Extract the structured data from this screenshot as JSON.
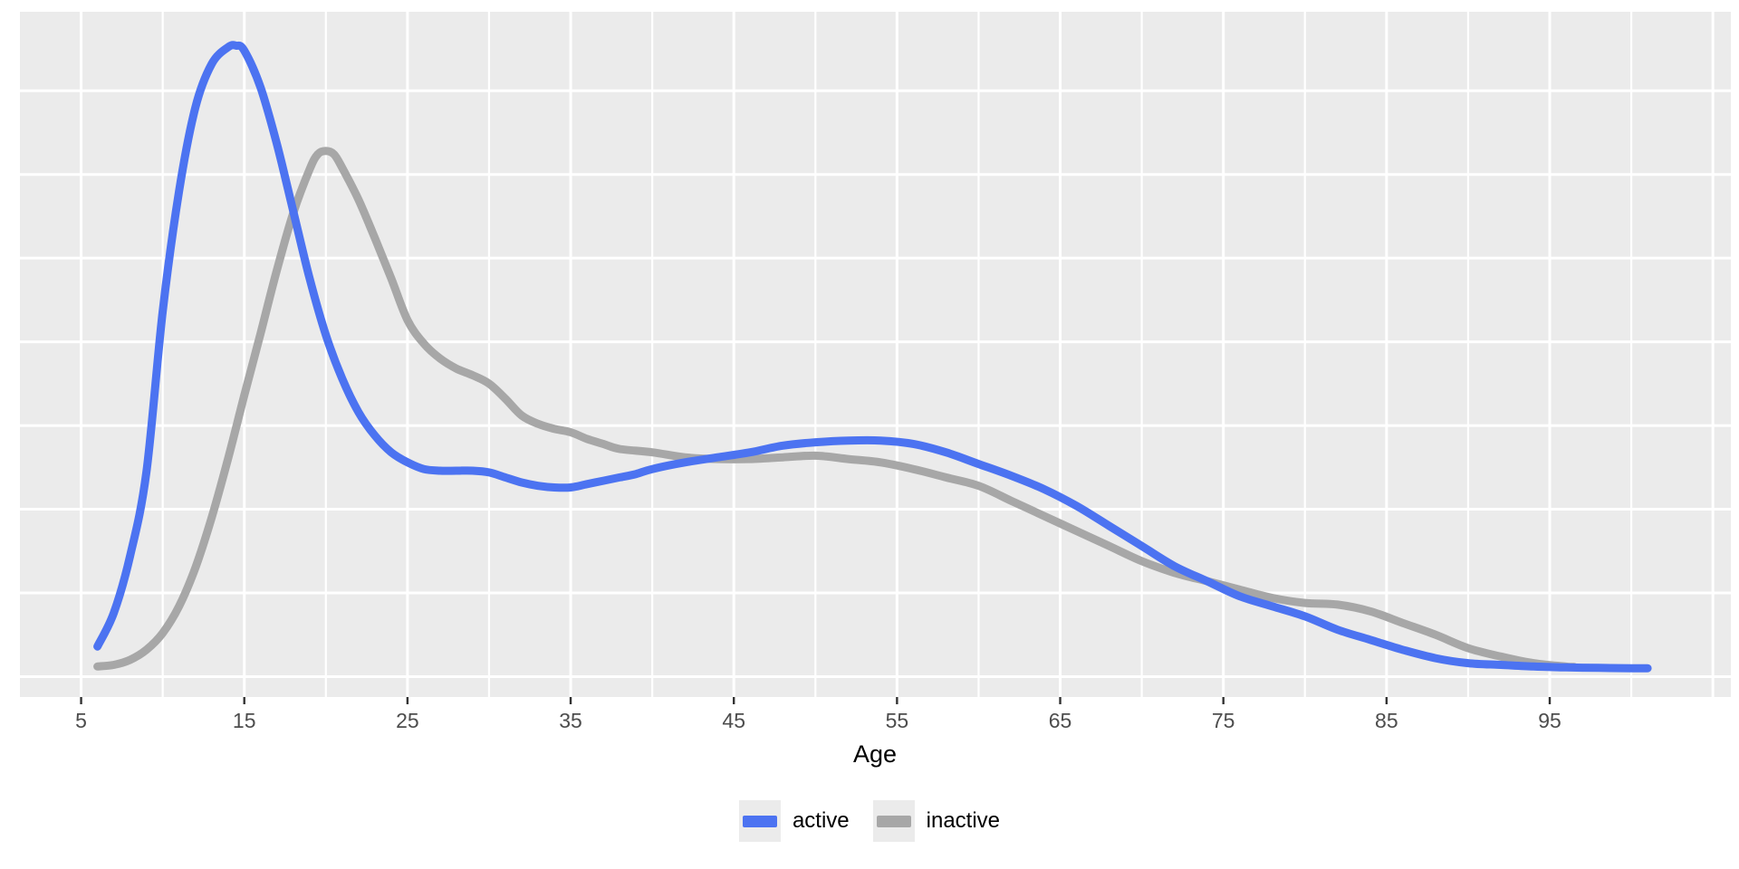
{
  "figure": {
    "background": "#FFFFFF",
    "panel_background": "#EBEBEB",
    "grid_color": "#FFFFFF",
    "tick_mark_color": "#333333",
    "tick_label_color": "#4D4D4D",
    "axis_title_color": "#000000"
  },
  "legend": {
    "position": "bottom",
    "key_background": "#EBEBEB",
    "entries": [
      {
        "label": "active",
        "color": "#4C73F1"
      },
      {
        "label": "inactive",
        "color": "#A7A7A7"
      }
    ]
  },
  "chart_data": {
    "type": "line",
    "subtype": "density",
    "title": "",
    "xlabel": "Age",
    "ylabel": "",
    "xlim": [
      1.25,
      106.1
    ],
    "ylim": [
      -0.00122,
      0.03972
    ],
    "x_ticks": [
      5,
      15,
      25,
      35,
      45,
      55,
      65,
      75,
      85,
      95
    ],
    "x_tick_labels": [
      "5",
      "15",
      "25",
      "35",
      "45",
      "55",
      "65",
      "75",
      "85",
      "95"
    ],
    "x_grid_major": [
      5,
      15,
      25,
      35,
      45,
      55,
      65,
      75,
      85,
      95,
      105
    ],
    "x_grid_minor": [
      10,
      20,
      30,
      40,
      50,
      60,
      70,
      80,
      90,
      100
    ],
    "y_gridlines": [
      0,
      0.005,
      0.01,
      0.015,
      0.02,
      0.025,
      0.03,
      0.035
    ],
    "y_tick_labels": [],
    "grid": true,
    "legend_position": "bottom",
    "series": [
      {
        "name": "inactive",
        "color": "#A7A7A7",
        "linewidth": 9,
        "points": [
          [
            6,
            0.0006
          ],
          [
            7,
            0.0007
          ],
          [
            8,
            0.001
          ],
          [
            9,
            0.0016
          ],
          [
            10,
            0.0026
          ],
          [
            11,
            0.0042
          ],
          [
            12,
            0.0065
          ],
          [
            13,
            0.0095
          ],
          [
            14,
            0.013
          ],
          [
            15,
            0.0168
          ],
          [
            16,
            0.0205
          ],
          [
            17,
            0.0243
          ],
          [
            18,
            0.0277
          ],
          [
            19,
            0.0303
          ],
          [
            19.5,
            0.0312
          ],
          [
            20,
            0.0314
          ],
          [
            20.5,
            0.0312
          ],
          [
            21,
            0.0304
          ],
          [
            22,
            0.0285
          ],
          [
            23,
            0.0262
          ],
          [
            24,
            0.0238
          ],
          [
            25,
            0.0213
          ],
          [
            26,
            0.0199
          ],
          [
            27,
            0.019
          ],
          [
            28,
            0.0184
          ],
          [
            29,
            0.018
          ],
          [
            30,
            0.0175
          ],
          [
            31,
            0.0166
          ],
          [
            32,
            0.0156
          ],
          [
            33,
            0.0151
          ],
          [
            34,
            0.0148
          ],
          [
            35,
            0.0146
          ],
          [
            36,
            0.0142
          ],
          [
            37,
            0.0139
          ],
          [
            38,
            0.0136
          ],
          [
            40,
            0.0134
          ],
          [
            42,
            0.0131
          ],
          [
            44,
            0.013
          ],
          [
            46,
            0.013
          ],
          [
            48,
            0.0131
          ],
          [
            50,
            0.0132
          ],
          [
            52,
            0.013
          ],
          [
            54,
            0.0128
          ],
          [
            56,
            0.0124
          ],
          [
            58,
            0.0119
          ],
          [
            60,
            0.0114
          ],
          [
            62,
            0.0105
          ],
          [
            64,
            0.0096
          ],
          [
            66,
            0.0087
          ],
          [
            68,
            0.0078
          ],
          [
            70,
            0.0069
          ],
          [
            72,
            0.0062
          ],
          [
            74,
            0.0057
          ],
          [
            76,
            0.0052
          ],
          [
            78,
            0.0047
          ],
          [
            80,
            0.0044
          ],
          [
            82,
            0.0043
          ],
          [
            84,
            0.0039
          ],
          [
            86,
            0.0032
          ],
          [
            88,
            0.0025
          ],
          [
            90,
            0.0017
          ],
          [
            92,
            0.0012
          ],
          [
            94,
            0.0008
          ],
          [
            96,
            0.0006
          ],
          [
            96.5,
            0.00058
          ]
        ]
      },
      {
        "name": "active",
        "color": "#4C73F1",
        "linewidth": 9,
        "points": [
          [
            6,
            0.0018
          ],
          [
            7,
            0.0038
          ],
          [
            8,
            0.0072
          ],
          [
            9,
            0.0122
          ],
          [
            10,
            0.0218
          ],
          [
            11,
            0.029
          ],
          [
            12,
            0.034
          ],
          [
            13,
            0.0366
          ],
          [
            14,
            0.0376
          ],
          [
            14.5,
            0.0377
          ],
          [
            15,
            0.0374
          ],
          [
            16,
            0.0352
          ],
          [
            17,
            0.0318
          ],
          [
            18,
            0.0278
          ],
          [
            19,
            0.0238
          ],
          [
            20,
            0.0204
          ],
          [
            21,
            0.0178
          ],
          [
            22,
            0.0158
          ],
          [
            23,
            0.0144
          ],
          [
            24,
            0.0134
          ],
          [
            25,
            0.0128
          ],
          [
            26,
            0.0124
          ],
          [
            27,
            0.0123
          ],
          [
            28,
            0.0123
          ],
          [
            29,
            0.0123
          ],
          [
            30,
            0.0122
          ],
          [
            31,
            0.0119
          ],
          [
            32,
            0.0116
          ],
          [
            33,
            0.0114
          ],
          [
            34,
            0.0113
          ],
          [
            35,
            0.0113
          ],
          [
            36,
            0.0115
          ],
          [
            37,
            0.0117
          ],
          [
            38,
            0.0119
          ],
          [
            39,
            0.0121
          ],
          [
            40,
            0.0124
          ],
          [
            42,
            0.0128
          ],
          [
            44,
            0.0131
          ],
          [
            46,
            0.0134
          ],
          [
            48,
            0.0138
          ],
          [
            50,
            0.014
          ],
          [
            52,
            0.0141
          ],
          [
            54,
            0.0141
          ],
          [
            56,
            0.0139
          ],
          [
            58,
            0.0134
          ],
          [
            60,
            0.0127
          ],
          [
            62,
            0.012
          ],
          [
            64,
            0.0112
          ],
          [
            66,
            0.0102
          ],
          [
            68,
            0.009
          ],
          [
            70,
            0.0078
          ],
          [
            72,
            0.0066
          ],
          [
            74,
            0.0057
          ],
          [
            76,
            0.0048
          ],
          [
            78,
            0.0042
          ],
          [
            80,
            0.0036
          ],
          [
            82,
            0.0028
          ],
          [
            84,
            0.0022
          ],
          [
            86,
            0.0016
          ],
          [
            88,
            0.0011
          ],
          [
            90,
            0.0008
          ],
          [
            92,
            0.0007
          ],
          [
            94,
            0.0006
          ],
          [
            96,
            0.00055
          ],
          [
            98,
            0.00052
          ],
          [
            100,
            0.0005
          ],
          [
            101,
            0.0005
          ]
        ]
      }
    ]
  }
}
